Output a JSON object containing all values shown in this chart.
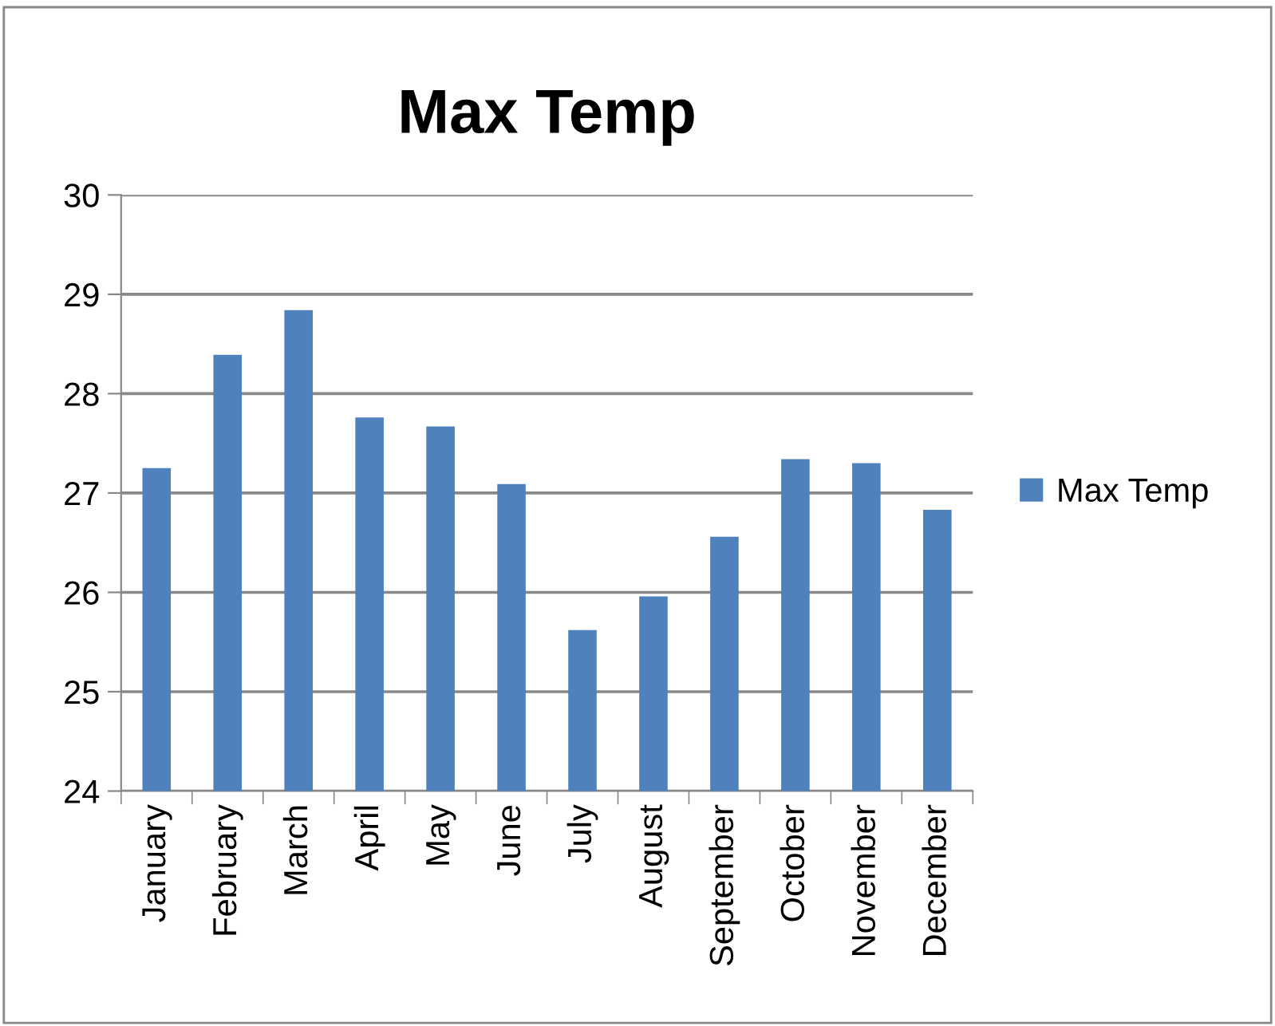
{
  "chart_data": {
    "type": "bar",
    "title": "Max Temp",
    "categories": [
      "January",
      "February",
      "March",
      "April",
      "May",
      "June",
      "July",
      "August",
      "September",
      "October",
      "November",
      "December"
    ],
    "series": [
      {
        "name": "Max Temp",
        "color": "#4f81bd",
        "values": [
          27.25,
          28.39,
          28.84,
          27.76,
          27.67,
          27.09,
          25.62,
          25.96,
          26.56,
          27.34,
          27.3,
          26.83
        ]
      }
    ],
    "ylim": [
      24,
      30
    ],
    "yticks": [
      24,
      25,
      26,
      27,
      28,
      29,
      30
    ],
    "grid": "y",
    "legend": "right"
  }
}
